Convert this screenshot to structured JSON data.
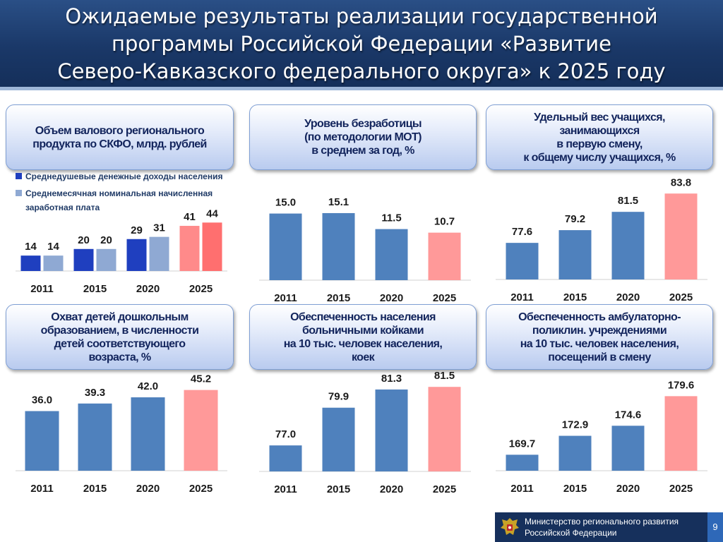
{
  "title_lines": [
    "Ожидаемые результаты реализации государственной",
    "программы Российской Федерации «Развитие",
    "Северо-Кавказского федерального округа» к 2025 году"
  ],
  "colors": {
    "bar": "#4f81bd",
    "bar_target": "#ff9999",
    "income": "#1f3fbf",
    "wage": "#8fa9d3",
    "income_target": "#ff8a8a",
    "wage_target": "#ff6f6f"
  },
  "panels": [
    {
      "title_lines": [
        "Объем валового регионального",
        "продукта по СКФО, млрд. рублей"
      ]
    },
    {
      "title_lines": [
        "Уровень безработицы",
        "(по методологии МОТ)",
        "в среднем за год, %"
      ]
    },
    {
      "title_lines": [
        "Удельный вес учащихся,",
        "занимающихся",
        "в первую смену,",
        "к общему числу учащихся, %"
      ]
    },
    {
      "title_lines": [
        "Охват детей дошкольным",
        "образованием, в численности",
        "детей соответствующего",
        "возраста, %"
      ]
    },
    {
      "title_lines": [
        "Обеспеченность населения",
        "больничными койками",
        "на 10 тыс. человек населения,",
        "коек"
      ]
    },
    {
      "title_lines": [
        "Обеспеченность амбулаторно-",
        "поликлин. учреждениями",
        "на 10 тыс. человек населения,",
        "посещений в смену"
      ]
    }
  ],
  "legend": [
    {
      "label": "Среднедушевые денежные доходы населения",
      "color": "#1f3fbf"
    },
    {
      "label": "Среднемесячная номинальная начисленная заработная плата",
      "color": "#8fa9d3"
    }
  ],
  "chart_data": [
    {
      "type": "bar",
      "categories": [
        "2011",
        "2015",
        "2020",
        "2025"
      ],
      "series": [
        {
          "name": "Среднедушевые денежные доходы населения",
          "values": [
            14,
            20,
            29,
            41
          ]
        },
        {
          "name": "Среднемесячная номинальная начисленная заработная плата",
          "values": [
            14,
            20,
            31,
            44
          ]
        }
      ],
      "ylim": [
        0,
        50
      ]
    },
    {
      "type": "bar",
      "categories": [
        "2011",
        "2015",
        "2020",
        "2025"
      ],
      "values": [
        15.0,
        15.1,
        11.5,
        10.7
      ],
      "labels": [
        "15.0",
        "15.1",
        "11.5",
        "10.7"
      ],
      "ylim": [
        0,
        17
      ]
    },
    {
      "type": "bar",
      "categories": [
        "2011",
        "2015",
        "2020",
        "2025"
      ],
      "values": [
        77.6,
        79.2,
        81.5,
        83.8
      ],
      "labels": [
        "77.6",
        "79.2",
        "81.5",
        "83.8"
      ],
      "ylim": [
        73,
        84
      ]
    },
    {
      "type": "bar",
      "categories": [
        "2011",
        "2015",
        "2020",
        "2025"
      ],
      "values": [
        36.0,
        39.3,
        42.0,
        45.2
      ],
      "labels": [
        "36.0",
        "39.3",
        "42.0",
        "45.2"
      ],
      "ylim": [
        10,
        46
      ]
    },
    {
      "type": "bar",
      "categories": [
        "2011",
        "2015",
        "2020",
        "2025"
      ],
      "values": [
        77.0,
        79.9,
        81.3,
        81.5
      ],
      "labels": [
        "77.0",
        "79.9",
        "81.3",
        "81.5"
      ],
      "ylim": [
        75,
        82
      ]
    },
    {
      "type": "bar",
      "categories": [
        "2011",
        "2015",
        "2020",
        "2025"
      ],
      "values": [
        169.7,
        172.9,
        174.6,
        179.6
      ],
      "labels": [
        "169.7",
        "172.9",
        "174.6",
        "179.6"
      ],
      "ylim": [
        167,
        180
      ]
    }
  ],
  "footer": {
    "org_lines": [
      "Министерство регионального развития",
      "Российской Федерации"
    ],
    "page": "9"
  }
}
